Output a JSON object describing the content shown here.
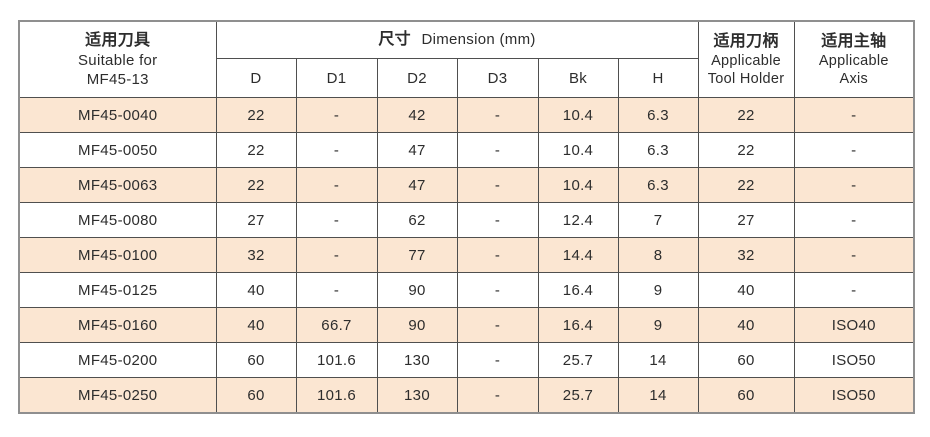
{
  "table": {
    "header": {
      "col_tool": {
        "zh": "适用刀具",
        "en1": "Suitable for",
        "en2": "MF45-13"
      },
      "col_dimension": {
        "zh": "尺寸",
        "en": "Dimension (mm)"
      },
      "dims": [
        "D",
        "D1",
        "D2",
        "D3",
        "Bk",
        "H"
      ],
      "col_holder": {
        "zh": "适用刀柄",
        "en1": "Applicable",
        "en2": "Tool Holder"
      },
      "col_axis": {
        "zh": "适用主轴",
        "en1": "Applicable",
        "en2": "Axis"
      }
    },
    "rows": [
      {
        "model": "MF45-0040",
        "values": [
          "22",
          "-",
          "42",
          "-",
          "10.4",
          "6.3",
          "22",
          "-"
        ],
        "shaded": true
      },
      {
        "model": "MF45-0050",
        "values": [
          "22",
          "-",
          "47",
          "-",
          "10.4",
          "6.3",
          "22",
          "-"
        ],
        "shaded": false
      },
      {
        "model": "MF45-0063",
        "values": [
          "22",
          "-",
          "47",
          "-",
          "10.4",
          "6.3",
          "22",
          "-"
        ],
        "shaded": true
      },
      {
        "model": "MF45-0080",
        "values": [
          "27",
          "-",
          "62",
          "-",
          "12.4",
          "7",
          "27",
          "-"
        ],
        "shaded": false
      },
      {
        "model": "MF45-0100",
        "values": [
          "32",
          "-",
          "77",
          "-",
          "14.4",
          "8",
          "32",
          "-"
        ],
        "shaded": true
      },
      {
        "model": "MF45-0125",
        "values": [
          "40",
          "-",
          "90",
          "-",
          "16.4",
          "9",
          "40",
          "-"
        ],
        "shaded": false
      },
      {
        "model": "MF45-0160",
        "values": [
          "40",
          "66.7",
          "90",
          "-",
          "16.4",
          "9",
          "40",
          "ISO40"
        ],
        "shaded": true
      },
      {
        "model": "MF45-0200",
        "values": [
          "60",
          "101.6",
          "130",
          "-",
          "25.7",
          "14",
          "60",
          "ISO50"
        ],
        "shaded": false
      },
      {
        "model": "MF45-0250",
        "values": [
          "60",
          "101.6",
          "130",
          "-",
          "25.7",
          "14",
          "60",
          "ISO50"
        ],
        "shaded": true
      }
    ],
    "colors": {
      "row_shade": "#fbe6d2",
      "grid_border": "#4f4f4f",
      "outer_border": "#8f8f8f",
      "text": "#2d2d2d"
    }
  }
}
